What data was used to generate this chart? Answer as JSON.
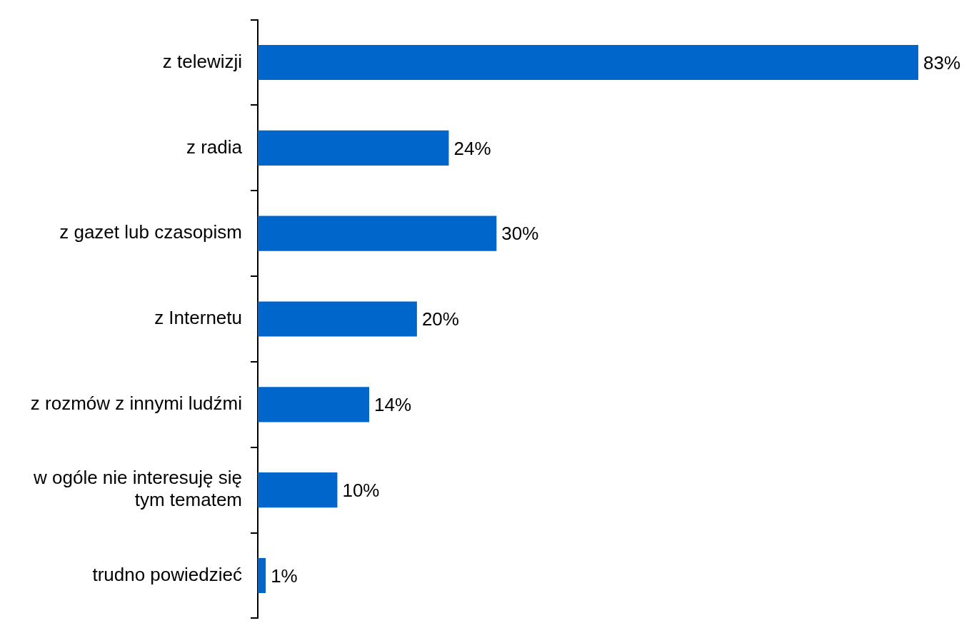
{
  "chart_data": {
    "type": "bar",
    "orientation": "horizontal",
    "categories": [
      "z telewizji",
      "z radia",
      "z gazet lub czasopism",
      "z Internetu",
      "z rozmów z innymi ludźmi",
      "w ogóle nie interesuję się tym tematem",
      "trudno powiedzieć"
    ],
    "values": [
      83,
      24,
      30,
      20,
      14,
      10,
      1
    ],
    "value_labels": [
      "83%",
      "24%",
      "30%",
      "20%",
      "14%",
      "10%",
      "1%"
    ],
    "color": "#0066cc",
    "grid": false,
    "legend": false
  }
}
